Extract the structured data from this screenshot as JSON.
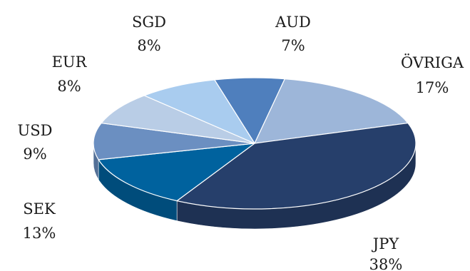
{
  "chart_data": {
    "type": "pie",
    "style": "3d-oblique",
    "slices": [
      {
        "label": "AUD",
        "value": 7,
        "display": "7%",
        "color": "#4f7fbd"
      },
      {
        "label": "ÖVRIGA",
        "value": 17,
        "display": "17%",
        "color": "#9db6d9"
      },
      {
        "label": "JPY",
        "value": 38,
        "display": "38%",
        "color": "#263f6b"
      },
      {
        "label": "SEK",
        "value": 13,
        "display": "13%",
        "color": "#00629e"
      },
      {
        "label": "USD",
        "value": 9,
        "display": "9%",
        "color": "#6b8fc1"
      },
      {
        "label": "EUR",
        "value": 8,
        "display": "8%",
        "color": "#b9cde6"
      },
      {
        "label": "SGD",
        "value": 8,
        "display": "8%",
        "color": "#a9ccef"
      }
    ]
  }
}
